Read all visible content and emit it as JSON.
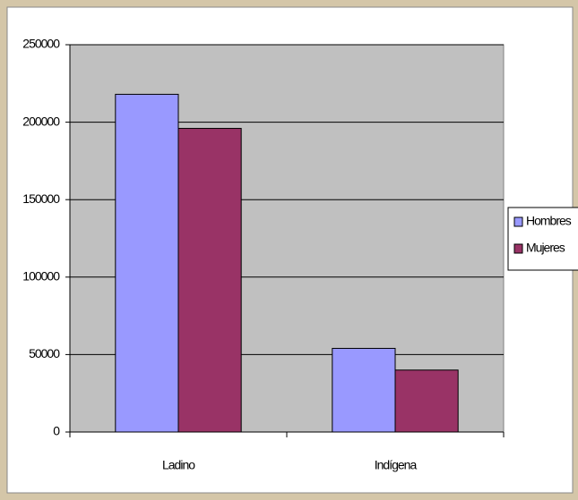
{
  "chart_data": {
    "type": "bar",
    "categories": [
      "Ladino",
      "Indígena"
    ],
    "series": [
      {
        "name": "Hombres",
        "color": "#9999ff",
        "values": [
          218000,
          54000
        ]
      },
      {
        "name": "Mujeres",
        "color": "#993366",
        "values": [
          196000,
          40000
        ]
      }
    ],
    "ylim": [
      0,
      250000
    ],
    "yticks": [
      0,
      50000,
      100000,
      150000,
      200000,
      250000
    ],
    "grid": true,
    "legend": "right",
    "plot_background": "#c0c0c0"
  }
}
